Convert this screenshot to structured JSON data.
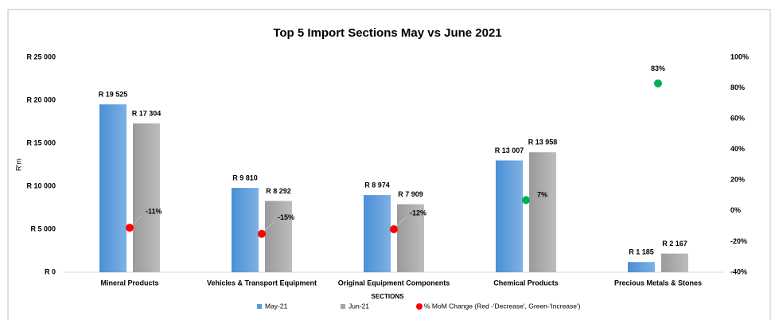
{
  "chart_data": {
    "type": "bar",
    "title": "Top 5 Import Sections May vs June 2021",
    "x_label": "SECTIONS",
    "y_label": "R'm",
    "categories": [
      "Mineral Products",
      "Vehicles & Transport Equipment",
      "Original Equipment Components",
      "Chemical Products",
      "Precious Metals & Stones"
    ],
    "series": [
      {
        "name": "May-21",
        "color": "#5b9bd5",
        "values": [
          19525,
          9810,
          8974,
          13007,
          1185
        ],
        "value_labels": [
          "R 19 525",
          "R 9 810",
          "R 8 974",
          "R 13 007",
          "R 1 185"
        ]
      },
      {
        "name": "Jun-21",
        "color": "#a5a5a5",
        "values": [
          17304,
          8292,
          7909,
          13958,
          2167
        ],
        "value_labels": [
          "R 17 304",
          "R 8 292",
          "R 7 909",
          "R 13 958",
          "R 2 167"
        ]
      },
      {
        "name": "% MoM Change (Red -'Decrease', Green-'Increase')",
        "type": "scatter",
        "axis": "y2",
        "color": "#ff0000",
        "colors": [
          "#ff0000",
          "#ff0000",
          "#ff0000",
          "#00b050",
          "#00b050"
        ],
        "values": [
          -11,
          -15,
          -12,
          7,
          83
        ],
        "value_labels": [
          "-11%",
          "-15%",
          "-12%",
          "7%",
          "83%"
        ],
        "label_colors": [
          "#ff0000",
          "#ff0000",
          "#ff0000",
          "#000000",
          "#000000"
        ]
      }
    ],
    "ylim": [
      0,
      25000
    ],
    "yticks": [
      {
        "value": 0,
        "label": "R 0"
      },
      {
        "value": 5000,
        "label": "R 5 000"
      },
      {
        "value": 10000,
        "label": "R 10 000"
      },
      {
        "value": 15000,
        "label": "R 15 000"
      },
      {
        "value": 20000,
        "label": "R 20 000"
      },
      {
        "value": 25000,
        "label": "R 25 000"
      }
    ],
    "y2lim": [
      -40,
      100
    ],
    "y2ticks": [
      {
        "value": -40,
        "label": "-40%"
      },
      {
        "value": -20,
        "label": "-20%"
      },
      {
        "value": 0,
        "label": "0%"
      },
      {
        "value": 20,
        "label": "20%"
      },
      {
        "value": 40,
        "label": "40%"
      },
      {
        "value": 60,
        "label": "60%"
      },
      {
        "value": 80,
        "label": "80%"
      },
      {
        "value": 100,
        "label": "100%"
      }
    ],
    "legend": "bottom"
  }
}
